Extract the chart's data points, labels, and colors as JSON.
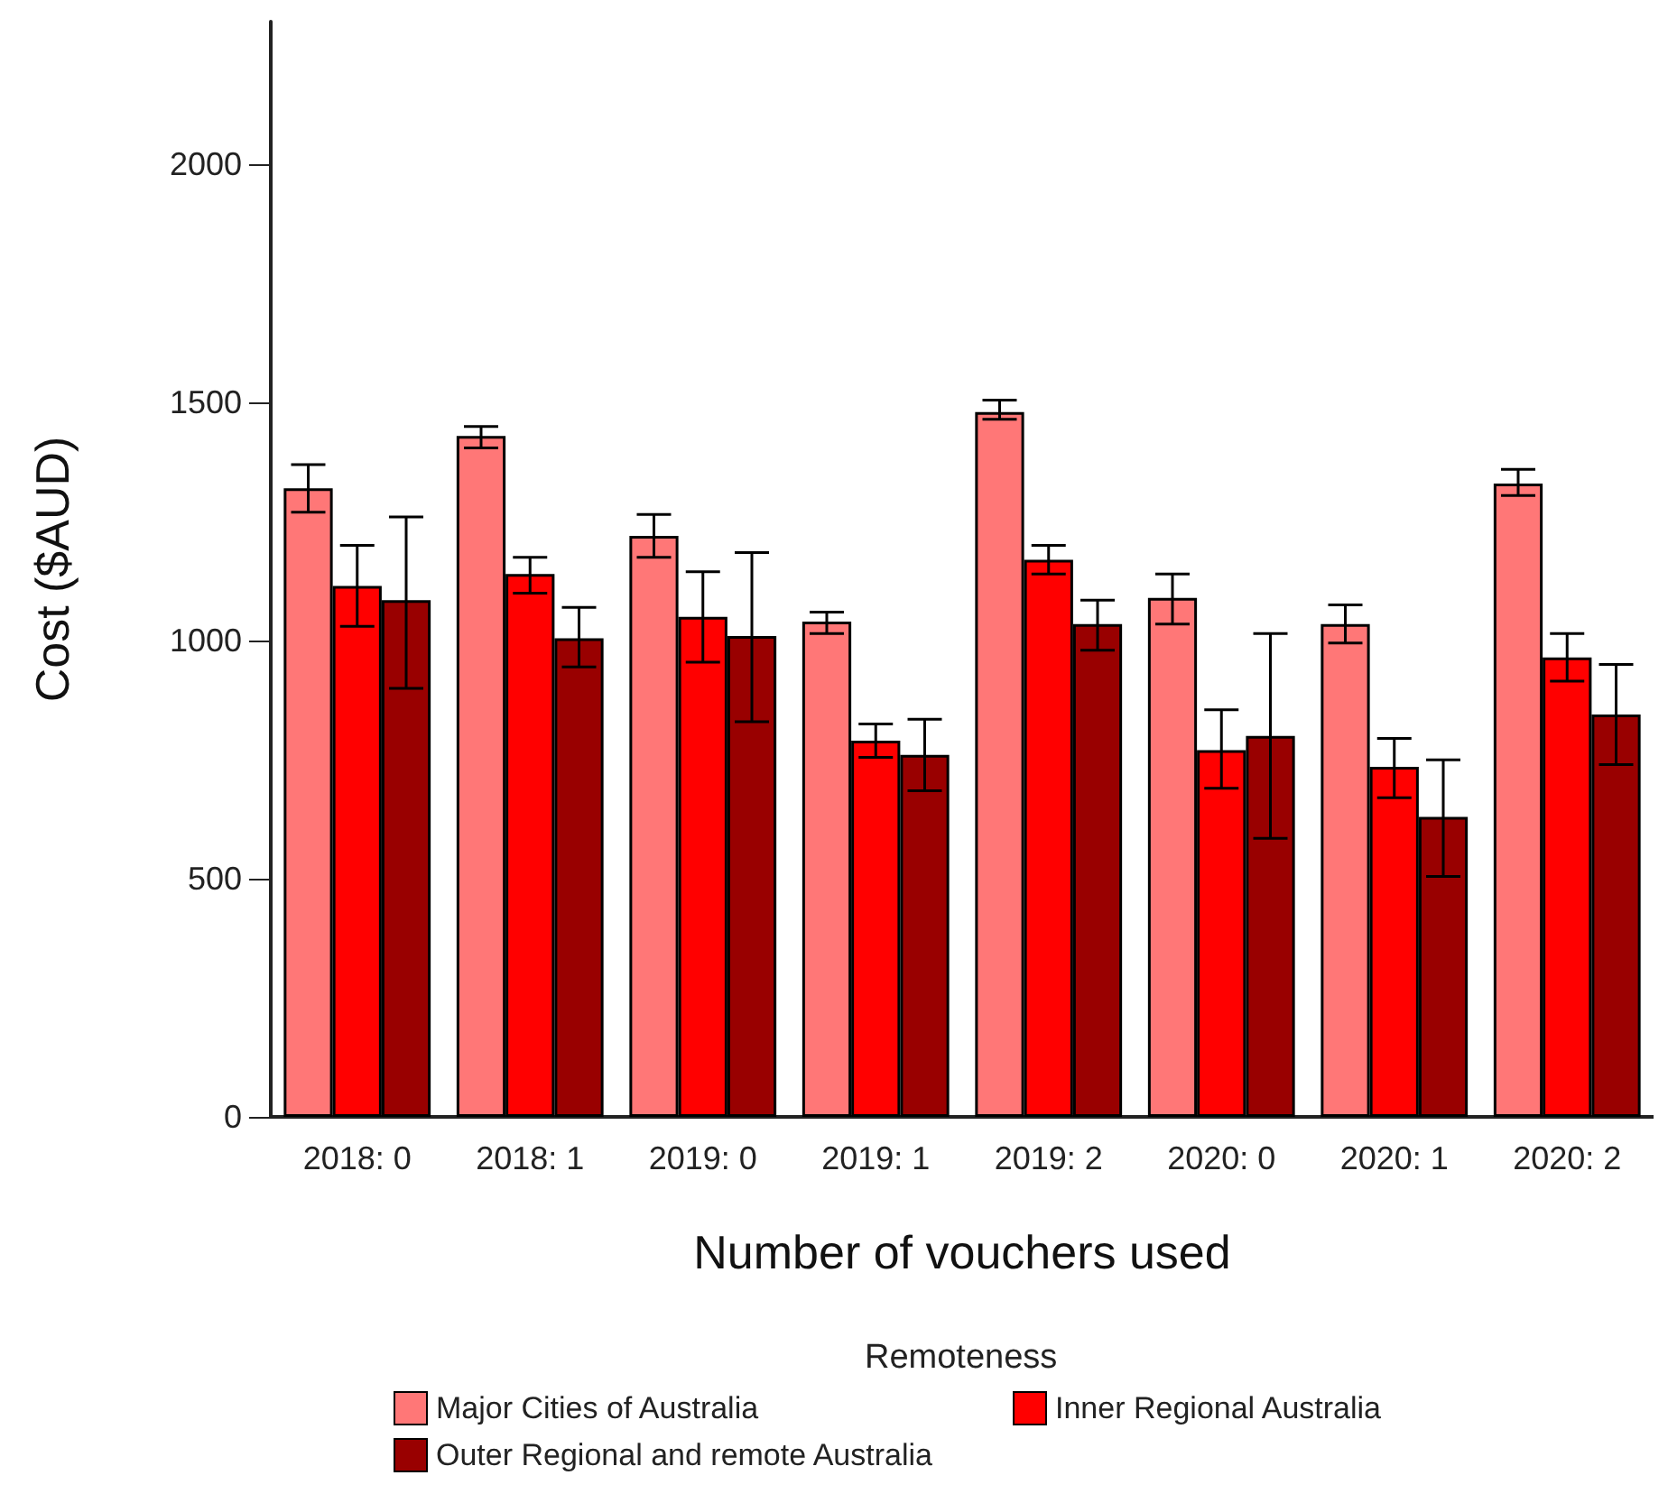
{
  "chart_data": {
    "type": "bar",
    "xlabel": "Number of vouchers used",
    "ylabel": "Cost ($AUD)",
    "legend_title": "Remoteness",
    "legend": "bottom",
    "grid": false,
    "categories": [
      "2018: 0",
      "2018: 1",
      "2019: 0",
      "2019: 1",
      "2019: 2",
      "2020: 0",
      "2020: 1",
      "2020: 2"
    ],
    "ylim": [
      0,
      2300
    ],
    "yticks": [
      0,
      500,
      1000,
      1500,
      2000
    ],
    "series": [
      {
        "name": "Major Cities of Australia",
        "color": "#ff7777",
        "values": [
          1320,
          1430,
          1220,
          1040,
          1480,
          1090,
          1035,
          1330
        ],
        "errors": [
          [
            1270,
            1370
          ],
          [
            1405,
            1450
          ],
          [
            1175,
            1265
          ],
          [
            1015,
            1060
          ],
          [
            1465,
            1505
          ],
          [
            1035,
            1140
          ],
          [
            995,
            1075
          ],
          [
            1305,
            1360
          ]
        ]
      },
      {
        "name": "Inner Regional Australia",
        "color": "#ff0000",
        "values": [
          1115,
          1140,
          1050,
          790,
          1170,
          770,
          735,
          965
        ],
        "errors": [
          [
            1030,
            1200
          ],
          [
            1100,
            1175
          ],
          [
            955,
            1145
          ],
          [
            755,
            825
          ],
          [
            1140,
            1200
          ],
          [
            690,
            855
          ],
          [
            670,
            795
          ],
          [
            915,
            1015
          ]
        ]
      },
      {
        "name": "Outer Regional and remote Australia",
        "color": "#990000",
        "values": [
          1085,
          1005,
          1010,
          760,
          1035,
          800,
          630,
          845
        ],
        "errors": [
          [
            900,
            1260
          ],
          [
            945,
            1070
          ],
          [
            830,
            1185
          ],
          [
            685,
            835
          ],
          [
            980,
            1085
          ],
          [
            585,
            1015
          ],
          [
            505,
            750
          ],
          [
            740,
            950
          ]
        ]
      }
    ]
  }
}
